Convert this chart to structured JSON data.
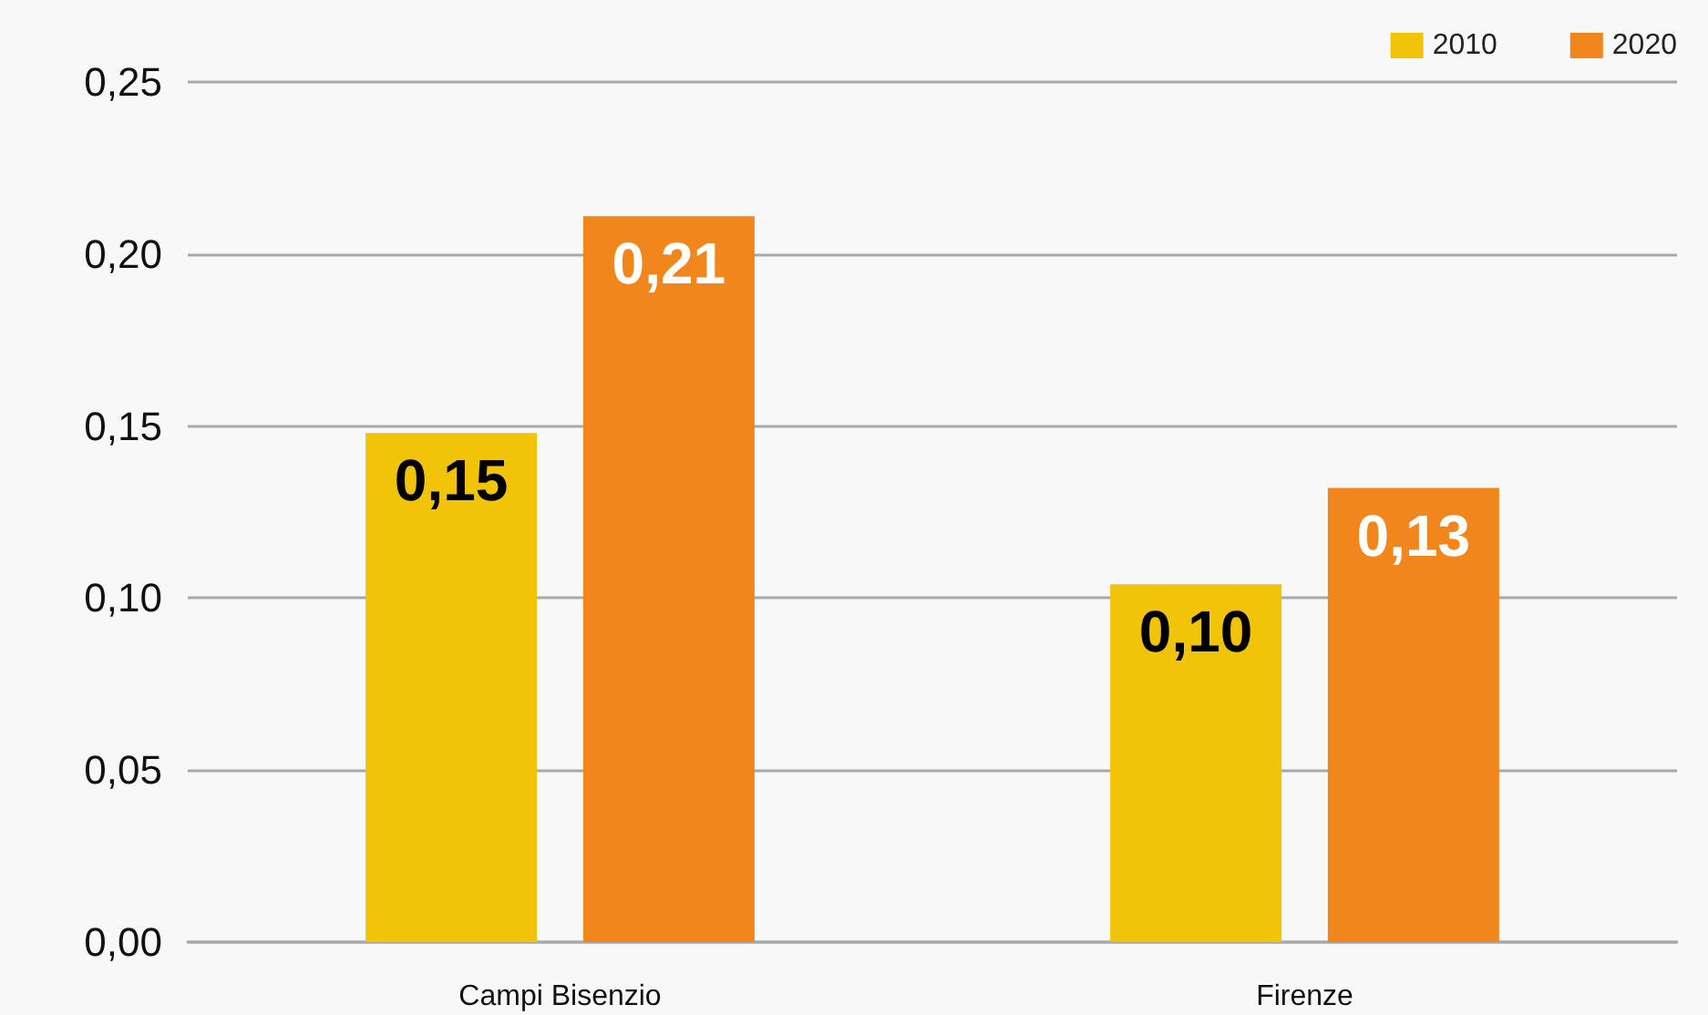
{
  "chart_data": {
    "type": "bar",
    "categories": [
      "Campi Bisenzio",
      "Firenze"
    ],
    "series": [
      {
        "name": "2010",
        "color": "#f1c40a",
        "values": [
          0.148,
          0.104
        ],
        "value_labels": [
          "0,15",
          "0,10"
        ]
      },
      {
        "name": "2020",
        "color": "#f0861c",
        "values": [
          0.211,
          0.132
        ],
        "value_labels": [
          "0,21",
          "0,13"
        ]
      }
    ],
    "ylim": [
      0,
      0.25
    ],
    "yticks": [
      {
        "value": 0,
        "label": "0,00"
      },
      {
        "value": 0.05,
        "label": "0,05"
      },
      {
        "value": 0.1,
        "label": "0,10"
      },
      {
        "value": 0.15,
        "label": "0,15"
      },
      {
        "value": 0.2,
        "label": "0,20"
      },
      {
        "value": 0.25,
        "label": "0,25"
      }
    ],
    "grid": "y",
    "legend": "top right"
  }
}
